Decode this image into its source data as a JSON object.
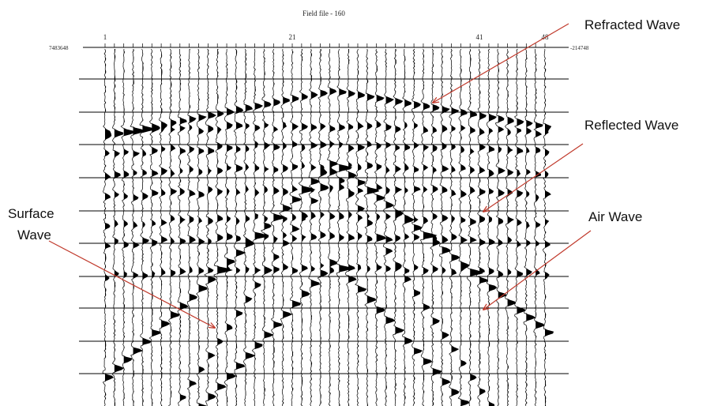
{
  "header": {
    "title": "Field file - 160"
  },
  "trace_labels": [
    "1",
    "21",
    "41",
    "48"
  ],
  "scale_left": "7483648",
  "scale_right": "-214748",
  "annotations": {
    "refracted": "Refracted Wave",
    "reflected": "Reflected Wave",
    "air": "Air Wave",
    "surface": [
      "Surface",
      "Wave"
    ]
  }
}
